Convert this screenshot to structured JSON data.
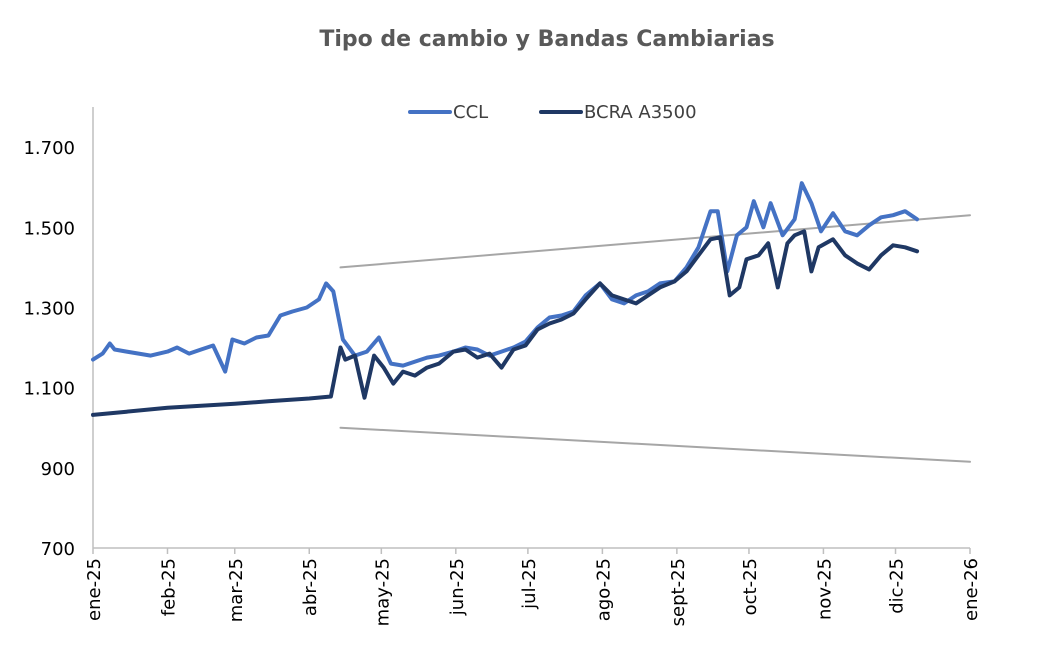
{
  "chart_data": {
    "type": "line",
    "title": "Tipo de cambio y Bandas Cambiarias",
    "xlabel": "",
    "ylabel": "",
    "ylim": [
      700,
      1800
    ],
    "y_ticks": [
      700,
      900,
      1100,
      1300,
      1500,
      1700
    ],
    "y_tick_labels": [
      "700",
      "900",
      "1.100",
      "1.300",
      "1.500",
      "1.700"
    ],
    "x_range": [
      "2025-01-01",
      "2026-01-01"
    ],
    "x_ticks": [
      "2025-01-01",
      "2025-02-01",
      "2025-03-01",
      "2025-04-01",
      "2025-05-01",
      "2025-06-01",
      "2025-07-01",
      "2025-08-01",
      "2025-09-01",
      "2025-10-01",
      "2025-11-01",
      "2025-12-01",
      "2026-01-01"
    ],
    "x_tick_labels": [
      "ene-25",
      "feb-25",
      "mar-25",
      "abr-25",
      "may-25",
      "jun-25",
      "jul-25",
      "ago-25",
      "sept-25",
      "oct-25",
      "nov-25",
      "dic-25",
      "ene-26"
    ],
    "legend_position": "top-center",
    "grid": false,
    "series": [
      {
        "name": "CCL",
        "color": "#4472C4",
        "points": [
          [
            "2025-01-01",
            1170
          ],
          [
            "2025-01-05",
            1185
          ],
          [
            "2025-01-08",
            1210
          ],
          [
            "2025-01-10",
            1195
          ],
          [
            "2025-01-15",
            1190
          ],
          [
            "2025-01-20",
            1185
          ],
          [
            "2025-01-25",
            1180
          ],
          [
            "2025-02-01",
            1190
          ],
          [
            "2025-02-05",
            1200
          ],
          [
            "2025-02-10",
            1185
          ],
          [
            "2025-02-15",
            1195
          ],
          [
            "2025-02-20",
            1205
          ],
          [
            "2025-02-25",
            1140
          ],
          [
            "2025-02-28",
            1220
          ],
          [
            "2025-03-05",
            1210
          ],
          [
            "2025-03-10",
            1225
          ],
          [
            "2025-03-15",
            1230
          ],
          [
            "2025-03-20",
            1280
          ],
          [
            "2025-03-25",
            1290
          ],
          [
            "2025-03-31",
            1300
          ],
          [
            "2025-04-05",
            1320
          ],
          [
            "2025-04-08",
            1360
          ],
          [
            "2025-04-11",
            1340
          ],
          [
            "2025-04-15",
            1220
          ],
          [
            "2025-04-20",
            1180
          ],
          [
            "2025-04-25",
            1190
          ],
          [
            "2025-04-30",
            1225
          ],
          [
            "2025-05-05",
            1160
          ],
          [
            "2025-05-10",
            1155
          ],
          [
            "2025-05-15",
            1165
          ],
          [
            "2025-05-20",
            1175
          ],
          [
            "2025-05-25",
            1180
          ],
          [
            "2025-05-31",
            1190
          ],
          [
            "2025-06-05",
            1200
          ],
          [
            "2025-06-10",
            1195
          ],
          [
            "2025-06-15",
            1180
          ],
          [
            "2025-06-20",
            1190
          ],
          [
            "2025-06-25",
            1200
          ],
          [
            "2025-06-30",
            1215
          ],
          [
            "2025-07-05",
            1250
          ],
          [
            "2025-07-10",
            1275
          ],
          [
            "2025-07-15",
            1280
          ],
          [
            "2025-07-20",
            1290
          ],
          [
            "2025-07-25",
            1330
          ],
          [
            "2025-07-31",
            1360
          ],
          [
            "2025-08-05",
            1320
          ],
          [
            "2025-08-10",
            1310
          ],
          [
            "2025-08-15",
            1330
          ],
          [
            "2025-08-20",
            1340
          ],
          [
            "2025-08-25",
            1360
          ],
          [
            "2025-08-31",
            1365
          ],
          [
            "2025-09-05",
            1400
          ],
          [
            "2025-09-10",
            1450
          ],
          [
            "2025-09-15",
            1540
          ],
          [
            "2025-09-18",
            1540
          ],
          [
            "2025-09-22",
            1390
          ],
          [
            "2025-09-26",
            1480
          ],
          [
            "2025-09-30",
            1500
          ],
          [
            "2025-10-03",
            1565
          ],
          [
            "2025-10-07",
            1500
          ],
          [
            "2025-10-10",
            1560
          ],
          [
            "2025-10-15",
            1480
          ],
          [
            "2025-10-20",
            1520
          ],
          [
            "2025-10-23",
            1610
          ],
          [
            "2025-10-27",
            1560
          ],
          [
            "2025-10-31",
            1490
          ],
          [
            "2025-11-05",
            1535
          ],
          [
            "2025-11-10",
            1490
          ],
          [
            "2025-11-15",
            1480
          ],
          [
            "2025-11-20",
            1505
          ],
          [
            "2025-11-25",
            1525
          ],
          [
            "2025-11-30",
            1530
          ],
          [
            "2025-12-05",
            1540
          ],
          [
            "2025-12-10",
            1520
          ]
        ]
      },
      {
        "name": "BCRA A3500",
        "color": "#1F3864",
        "points": [
          [
            "2025-01-01",
            1032
          ],
          [
            "2025-01-15",
            1040
          ],
          [
            "2025-02-01",
            1050
          ],
          [
            "2025-02-15",
            1055
          ],
          [
            "2025-03-01",
            1060
          ],
          [
            "2025-03-15",
            1066
          ],
          [
            "2025-04-01",
            1073
          ],
          [
            "2025-04-10",
            1078
          ],
          [
            "2025-04-14",
            1200
          ],
          [
            "2025-04-16",
            1170
          ],
          [
            "2025-04-20",
            1180
          ],
          [
            "2025-04-24",
            1075
          ],
          [
            "2025-04-28",
            1180
          ],
          [
            "2025-05-02",
            1150
          ],
          [
            "2025-05-06",
            1110
          ],
          [
            "2025-05-10",
            1140
          ],
          [
            "2025-05-15",
            1130
          ],
          [
            "2025-05-20",
            1150
          ],
          [
            "2025-05-25",
            1160
          ],
          [
            "2025-05-31",
            1190
          ],
          [
            "2025-06-05",
            1195
          ],
          [
            "2025-06-10",
            1175
          ],
          [
            "2025-06-15",
            1185
          ],
          [
            "2025-06-20",
            1150
          ],
          [
            "2025-06-25",
            1195
          ],
          [
            "2025-06-30",
            1205
          ],
          [
            "2025-07-05",
            1245
          ],
          [
            "2025-07-10",
            1260
          ],
          [
            "2025-07-15",
            1270
          ],
          [
            "2025-07-20",
            1285
          ],
          [
            "2025-07-25",
            1320
          ],
          [
            "2025-07-31",
            1360
          ],
          [
            "2025-08-05",
            1330
          ],
          [
            "2025-08-10",
            1320
          ],
          [
            "2025-08-15",
            1310
          ],
          [
            "2025-08-20",
            1330
          ],
          [
            "2025-08-25",
            1350
          ],
          [
            "2025-08-31",
            1365
          ],
          [
            "2025-09-05",
            1390
          ],
          [
            "2025-09-10",
            1430
          ],
          [
            "2025-09-15",
            1470
          ],
          [
            "2025-09-19",
            1475
          ],
          [
            "2025-09-23",
            1330
          ],
          [
            "2025-09-27",
            1350
          ],
          [
            "2025-09-30",
            1420
          ],
          [
            "2025-10-05",
            1430
          ],
          [
            "2025-10-09",
            1460
          ],
          [
            "2025-10-13",
            1350
          ],
          [
            "2025-10-17",
            1460
          ],
          [
            "2025-10-20",
            1480
          ],
          [
            "2025-10-24",
            1490
          ],
          [
            "2025-10-27",
            1390
          ],
          [
            "2025-10-30",
            1450
          ],
          [
            "2025-11-05",
            1470
          ],
          [
            "2025-11-10",
            1430
          ],
          [
            "2025-11-15",
            1410
          ],
          [
            "2025-11-20",
            1395
          ],
          [
            "2025-11-25",
            1430
          ],
          [
            "2025-11-30",
            1455
          ],
          [
            "2025-12-05",
            1450
          ],
          [
            "2025-12-10",
            1440
          ]
        ]
      },
      {
        "name": "",
        "color": "#A6A6A6",
        "points": [
          [
            "2025-04-14",
            1400
          ],
          [
            "2026-01-01",
            1530
          ]
        ]
      },
      {
        "name": "",
        "color": "#A6A6A6",
        "points": [
          [
            "2025-04-14",
            1000
          ],
          [
            "2026-01-01",
            915
          ]
        ]
      }
    ]
  }
}
